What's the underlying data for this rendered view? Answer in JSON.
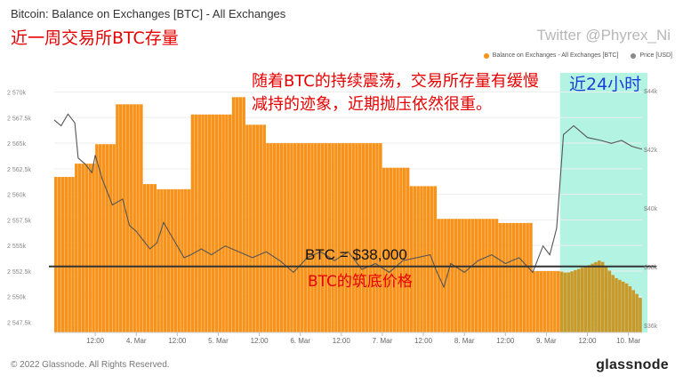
{
  "title": "Bitcoin: Balance on Exchanges [BTC] - All Exchanges",
  "subtitle_cn": "近一周交易所BTC存量",
  "watermark": "Twitter @Phyrex_Ni",
  "annotations": {
    "main": "随着BTC的持续震荡，交易所存量有缓慢减持的迹象，近期抛压依然很重。",
    "last24h": "近24小时",
    "btc_level": "BTC = $38,000",
    "btc_bottom": "BTC的筑底价格"
  },
  "legend": [
    {
      "label": "Balance on Exchanges - All Exchanges [BTC]",
      "color": "#f7931a"
    },
    {
      "label": "Price [USD]",
      "color": "#888888"
    }
  ],
  "copyright": "© 2022 Glassnode. All Rights Reserved.",
  "brand": "glassnode",
  "colors": {
    "balance": "#f7931a",
    "balance_highlight": "#c99a2a",
    "price": "#555555",
    "highlight_band": "#b3f3e2",
    "reference_line": "#333333"
  },
  "chart_data": {
    "type": "bar",
    "x_ticks": [
      "12:00",
      "4. Mar",
      "12:00",
      "5. Mar",
      "12:00",
      "6. Mar",
      "12:00",
      "7. Mar",
      "12:00",
      "8. Mar",
      "12:00",
      "9. Mar",
      "12:00",
      "10. Mar"
    ],
    "y_left_ticks": [
      "2 547.5k",
      "2 550k",
      "2 552.5k",
      "2 555k",
      "2 557.5k",
      "2 560k",
      "2 562.5k",
      "2 565k",
      "2 567.5k",
      "2 570k"
    ],
    "y_left_range": [
      2546500,
      2571000
    ],
    "y_right_ticks": [
      "$36k",
      "$38k",
      "$40k",
      "$42k",
      "$44k"
    ],
    "y_right_range": [
      35750,
      44300
    ],
    "x_range_hours": [
      0,
      172
    ],
    "reference_price": 38000,
    "highlight_range_hours": [
      148,
      172
    ],
    "balance_series": {
      "name": "Balance on Exchanges - All Exchanges [BTC]",
      "points": [
        [
          0,
          2561700
        ],
        [
          6,
          2561700
        ],
        [
          6.5,
          2563000
        ],
        [
          12,
          2563000
        ],
        [
          12.5,
          2564900
        ],
        [
          18,
          2564900
        ],
        [
          18.5,
          2568800
        ],
        [
          26,
          2568800
        ],
        [
          26.5,
          2561000
        ],
        [
          30,
          2561000
        ],
        [
          30.5,
          2560500
        ],
        [
          40,
          2560500
        ],
        [
          40.5,
          2567800
        ],
        [
          52,
          2567800
        ],
        [
          52.5,
          2569500
        ],
        [
          56,
          2569500
        ],
        [
          56.5,
          2566800
        ],
        [
          62,
          2566800
        ],
        [
          62.5,
          2565000
        ],
        [
          96,
          2565000
        ],
        [
          96.5,
          2562600
        ],
        [
          104,
          2562600
        ],
        [
          104.5,
          2560800
        ],
        [
          112,
          2560800
        ],
        [
          112.5,
          2557600
        ],
        [
          130,
          2557600
        ],
        [
          130.5,
          2557200
        ],
        [
          140,
          2557200
        ],
        [
          140.5,
          2552500
        ],
        [
          148,
          2552500
        ],
        [
          150,
          2552300
        ],
        [
          156,
          2553000
        ],
        [
          160,
          2553600
        ],
        [
          164,
          2551900
        ],
        [
          168,
          2551200
        ],
        [
          172,
          2549700
        ]
      ]
    },
    "price_series": {
      "name": "Price [USD]",
      "points": [
        [
          0,
          43000
        ],
        [
          2,
          42800
        ],
        [
          4,
          43200
        ],
        [
          6,
          42900
        ],
        [
          7,
          41700
        ],
        [
          9,
          41500
        ],
        [
          11,
          41200
        ],
        [
          12,
          41800
        ],
        [
          14,
          41000
        ],
        [
          17,
          40100
        ],
        [
          20,
          40300
        ],
        [
          22,
          39400
        ],
        [
          24,
          39200
        ],
        [
          26,
          38900
        ],
        [
          28,
          38600
        ],
        [
          30,
          38800
        ],
        [
          32,
          39500
        ],
        [
          35,
          38900
        ],
        [
          38,
          38300
        ],
        [
          40,
          38400
        ],
        [
          43,
          38600
        ],
        [
          46,
          38400
        ],
        [
          50,
          38700
        ],
        [
          54,
          38500
        ],
        [
          58,
          38300
        ],
        [
          62,
          38500
        ],
        [
          66,
          38200
        ],
        [
          70,
          37800
        ],
        [
          74,
          38300
        ],
        [
          78,
          38500
        ],
        [
          82,
          38200
        ],
        [
          86,
          38500
        ],
        [
          90,
          37900
        ],
        [
          94,
          38100
        ],
        [
          98,
          37800
        ],
        [
          102,
          38200
        ],
        [
          106,
          38300
        ],
        [
          110,
          38400
        ],
        [
          112,
          37800
        ],
        [
          114,
          37300
        ],
        [
          116,
          38100
        ],
        [
          120,
          37800
        ],
        [
          124,
          38200
        ],
        [
          128,
          38400
        ],
        [
          132,
          38100
        ],
        [
          136,
          38300
        ],
        [
          140,
          37800
        ],
        [
          143,
          38700
        ],
        [
          145,
          38400
        ],
        [
          147,
          39300
        ],
        [
          148,
          40900
        ],
        [
          149,
          42500
        ],
        [
          152,
          42800
        ],
        [
          156,
          42400
        ],
        [
          160,
          42300
        ],
        [
          163,
          42200
        ],
        [
          166,
          42300
        ],
        [
          169,
          42100
        ],
        [
          172,
          42000
        ]
      ]
    }
  }
}
